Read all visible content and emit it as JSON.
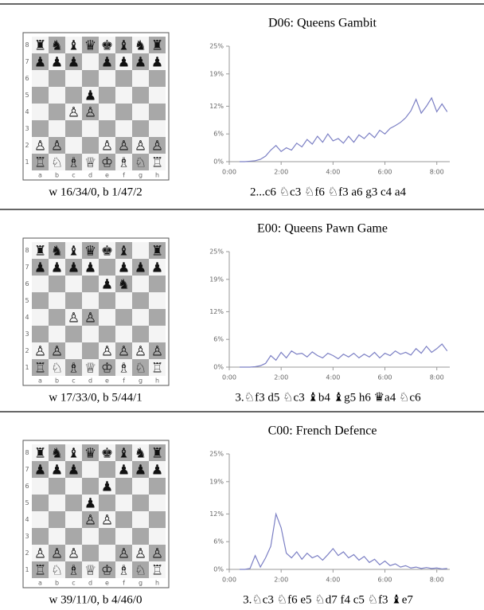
{
  "chart_data": [
    {
      "type": "line",
      "title": "D06: Queens Gambit",
      "board": {
        "ranks": [
          8,
          7,
          6,
          5,
          4,
          3,
          2,
          1
        ],
        "files": [
          "a",
          "b",
          "c",
          "d",
          "e",
          "f",
          "g",
          "h"
        ],
        "rows": [
          [
            "♜",
            "♞",
            "♝",
            "♛",
            "♚",
            "♝",
            "♞",
            "♜"
          ],
          [
            "♟",
            "♟",
            "♟",
            null,
            "♟",
            "♟",
            "♟",
            "♟"
          ],
          [
            null,
            null,
            null,
            null,
            null,
            null,
            null,
            null
          ],
          [
            null,
            null,
            null,
            "♟",
            null,
            null,
            null,
            null
          ],
          [
            null,
            null,
            "♙",
            "♙",
            null,
            null,
            null,
            null
          ],
          [
            null,
            null,
            null,
            null,
            null,
            null,
            null,
            null
          ],
          [
            "♙",
            "♙",
            null,
            null,
            "♙",
            "♙",
            "♙",
            "♙"
          ],
          [
            "♖",
            "♘",
            "♗",
            "♕",
            "♔",
            "♗",
            "♘",
            "♖"
          ]
        ]
      },
      "caption_left": "w 16/34/0, b 1/47/2",
      "caption_right": "2...c6 ♘c3 ♘f6 ♘f3 a6 g3 c4 a4",
      "x": [
        0.4,
        0.6,
        0.8,
        1.0,
        1.2,
        1.4,
        1.6,
        1.8,
        2.0,
        2.2,
        2.4,
        2.6,
        2.8,
        3.0,
        3.2,
        3.4,
        3.6,
        3.8,
        4.0,
        4.2,
        4.4,
        4.6,
        4.8,
        5.0,
        5.2,
        5.4,
        5.6,
        5.8,
        6.0,
        6.2,
        6.4,
        6.6,
        6.8,
        7.0,
        7.2,
        7.4,
        7.6,
        7.8,
        8.0,
        8.2,
        8.4
      ],
      "series": [
        {
          "color": "#7b7fc4",
          "values": [
            0,
            0,
            0.1,
            0.2,
            0.5,
            1.2,
            2.5,
            3.5,
            2.2,
            3.0,
            2.5,
            4.0,
            3.2,
            4.8,
            3.8,
            5.5,
            4.2,
            6.0,
            4.5,
            5.0,
            4.0,
            5.5,
            4.2,
            5.8,
            5.0,
            6.2,
            5.2,
            6.8,
            6.0,
            7.2,
            7.8,
            8.5,
            9.5,
            11.0,
            13.5,
            10.5,
            12.0,
            13.8,
            10.8,
            12.5,
            10.8
          ]
        }
      ],
      "xlim": [
        0,
        8.5
      ],
      "ylim": [
        0,
        25
      ],
      "xticks": [
        {
          "value": 0,
          "label": "0:00"
        },
        {
          "value": 2,
          "label": "2:00"
        },
        {
          "value": 4,
          "label": "4:00"
        },
        {
          "value": 6,
          "label": "6:00"
        },
        {
          "value": 8,
          "label": "8:00"
        }
      ],
      "yticks": [
        {
          "value": 0,
          "label": "0%"
        },
        {
          "value": 6,
          "label": "6%"
        },
        {
          "value": 12,
          "label": "12%"
        },
        {
          "value": 19,
          "label": "19%"
        },
        {
          "value": 25,
          "label": "25%"
        }
      ]
    },
    {
      "type": "line",
      "title": "E00: Queens Pawn Game",
      "board": {
        "ranks": [
          8,
          7,
          6,
          5,
          4,
          3,
          2,
          1
        ],
        "files": [
          "a",
          "b",
          "c",
          "d",
          "e",
          "f",
          "g",
          "h"
        ],
        "rows": [
          [
            "♜",
            "♞",
            "♝",
            "♛",
            "♚",
            "♝",
            null,
            "♜"
          ],
          [
            "♟",
            "♟",
            "♟",
            "♟",
            null,
            "♟",
            "♟",
            "♟"
          ],
          [
            null,
            null,
            null,
            null,
            "♟",
            "♞",
            null,
            null
          ],
          [
            null,
            null,
            null,
            null,
            null,
            null,
            null,
            null
          ],
          [
            null,
            null,
            "♙",
            "♙",
            null,
            null,
            null,
            null
          ],
          [
            null,
            null,
            null,
            null,
            null,
            null,
            null,
            null
          ],
          [
            "♙",
            "♙",
            null,
            null,
            "♙",
            "♙",
            "♙",
            "♙"
          ],
          [
            "♖",
            "♘",
            "♗",
            "♕",
            "♔",
            "♗",
            "♘",
            "♖"
          ]
        ]
      },
      "caption_left": "w 17/33/0, b 5/44/1",
      "caption_right": "3.♘f3 d5 ♘c3 ♝b4 ♝g5 h6 ♛a4 ♘c6",
      "x": [
        0.4,
        0.6,
        0.8,
        1.0,
        1.2,
        1.4,
        1.6,
        1.8,
        2.0,
        2.2,
        2.4,
        2.6,
        2.8,
        3.0,
        3.2,
        3.4,
        3.6,
        3.8,
        4.0,
        4.2,
        4.4,
        4.6,
        4.8,
        5.0,
        5.2,
        5.4,
        5.6,
        5.8,
        6.0,
        6.2,
        6.4,
        6.6,
        6.8,
        7.0,
        7.2,
        7.4,
        7.6,
        7.8,
        8.0,
        8.2,
        8.4
      ],
      "series": [
        {
          "color": "#7b7fc4",
          "values": [
            0,
            0,
            0,
            0.1,
            0.3,
            0.8,
            2.5,
            1.5,
            3.2,
            2.0,
            3.5,
            2.8,
            3.0,
            2.2,
            3.3,
            2.5,
            2.0,
            3.0,
            2.5,
            1.8,
            2.8,
            2.2,
            3.0,
            2.0,
            2.8,
            2.2,
            3.2,
            2.0,
            3.0,
            2.5,
            3.5,
            2.8,
            3.2,
            2.6,
            4.0,
            3.0,
            4.5,
            3.2,
            4.0,
            5.0,
            3.5
          ]
        }
      ],
      "xlim": [
        0,
        8.5
      ],
      "ylim": [
        0,
        25
      ],
      "xticks": [
        {
          "value": 0,
          "label": "0:00"
        },
        {
          "value": 2,
          "label": "2:00"
        },
        {
          "value": 4,
          "label": "4:00"
        },
        {
          "value": 6,
          "label": "6:00"
        },
        {
          "value": 8,
          "label": "8:00"
        }
      ],
      "yticks": [
        {
          "value": 0,
          "label": "0%"
        },
        {
          "value": 6,
          "label": "6%"
        },
        {
          "value": 12,
          "label": "12%"
        },
        {
          "value": 19,
          "label": "19%"
        },
        {
          "value": 25,
          "label": "25%"
        }
      ]
    },
    {
      "type": "line",
      "title": "C00: French Defence",
      "board": {
        "ranks": [
          8,
          7,
          6,
          5,
          4,
          3,
          2,
          1
        ],
        "files": [
          "a",
          "b",
          "c",
          "d",
          "e",
          "f",
          "g",
          "h"
        ],
        "rows": [
          [
            "♜",
            "♞",
            "♝",
            "♛",
            "♚",
            "♝",
            "♞",
            "♜"
          ],
          [
            "♟",
            "♟",
            "♟",
            null,
            null,
            "♟",
            "♟",
            "♟"
          ],
          [
            null,
            null,
            null,
            null,
            "♟",
            null,
            null,
            null
          ],
          [
            null,
            null,
            null,
            "♟",
            null,
            null,
            null,
            null
          ],
          [
            null,
            null,
            null,
            "♙",
            "♙",
            null,
            null,
            null
          ],
          [
            null,
            null,
            null,
            null,
            null,
            null,
            null,
            null
          ],
          [
            "♙",
            "♙",
            "♙",
            null,
            null,
            "♙",
            "♙",
            "♙"
          ],
          [
            "♖",
            "♘",
            "♗",
            "♕",
            "♔",
            "♗",
            "♘",
            "♖"
          ]
        ]
      },
      "caption_left": "w 39/11/0, b 4/46/0",
      "caption_right": "3.♘c3 ♘f6 e5 ♘d7 f4 c5 ♘f3 ♝e7",
      "x": [
        0.4,
        0.6,
        0.8,
        1.0,
        1.2,
        1.4,
        1.6,
        1.8,
        2.0,
        2.2,
        2.4,
        2.6,
        2.8,
        3.0,
        3.2,
        3.4,
        3.6,
        3.8,
        4.0,
        4.2,
        4.4,
        4.6,
        4.8,
        5.0,
        5.2,
        5.4,
        5.6,
        5.8,
        6.0,
        6.2,
        6.4,
        6.6,
        6.8,
        7.0,
        7.2,
        7.4,
        7.6,
        7.8,
        8.0,
        8.2,
        8.4
      ],
      "series": [
        {
          "color": "#7b7fc4",
          "values": [
            0,
            0,
            0.2,
            3.0,
            0.5,
            2.5,
            5,
            12,
            9,
            3.5,
            2.5,
            3.8,
            2.2,
            3.5,
            2.5,
            3.0,
            2.0,
            3.2,
            4.5,
            3.0,
            3.8,
            2.5,
            3.2,
            2.0,
            2.8,
            1.5,
            2.2,
            1.0,
            1.8,
            0.8,
            1.2,
            0.5,
            0.8,
            0.3,
            0.5,
            0.2,
            0.4,
            0.2,
            0.3,
            0.1,
            0.2
          ]
        }
      ],
      "xlim": [
        0,
        8.5
      ],
      "ylim": [
        0,
        25
      ],
      "xticks": [
        {
          "value": 0,
          "label": "0:00"
        },
        {
          "value": 2,
          "label": "2:00"
        },
        {
          "value": 4,
          "label": "4:00"
        },
        {
          "value": 6,
          "label": "6:00"
        },
        {
          "value": 8,
          "label": "8:00"
        }
      ],
      "yticks": [
        {
          "value": 0,
          "label": "0%"
        },
        {
          "value": 6,
          "label": "6%"
        },
        {
          "value": 12,
          "label": "12%"
        },
        {
          "value": 19,
          "label": "19%"
        },
        {
          "value": 25,
          "label": "25%"
        }
      ]
    }
  ]
}
